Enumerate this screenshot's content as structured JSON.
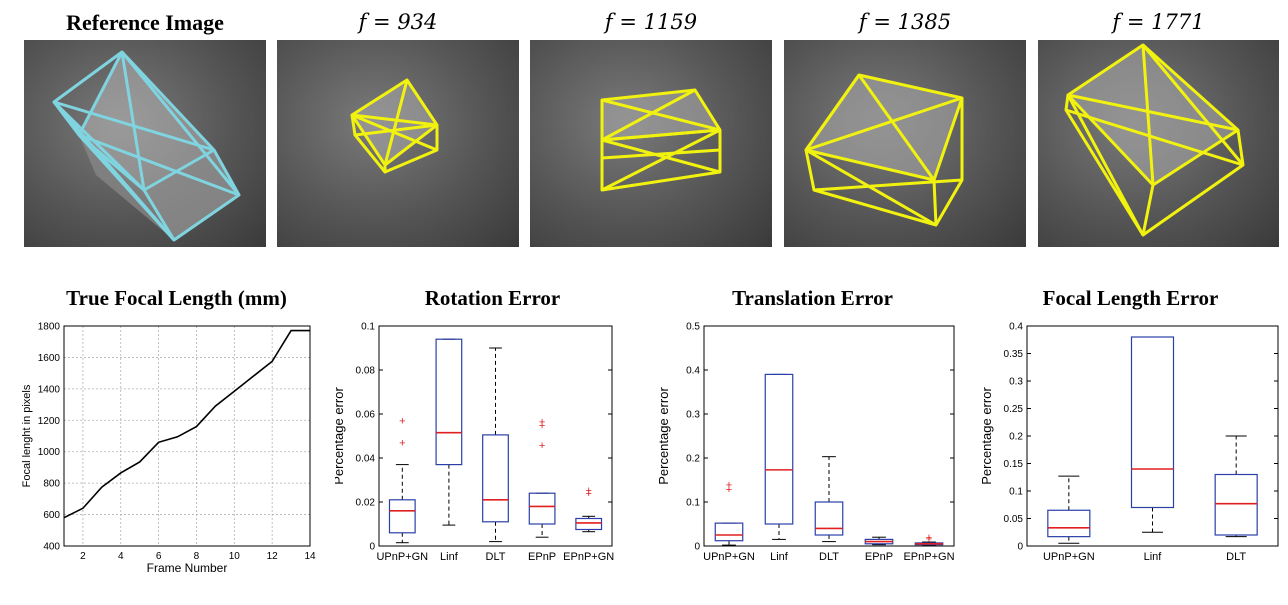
{
  "images": [
    {
      "title": "Reference Image",
      "style": "bold",
      "color": "#7fd4e0"
    },
    {
      "title": "f = 934",
      "style": "math",
      "color": "#f2f20f"
    },
    {
      "title": "f = 1159",
      "style": "math",
      "color": "#f2f20f"
    },
    {
      "title": "f = 1385",
      "style": "math",
      "color": "#f2f20f"
    },
    {
      "title": "f = 1771",
      "style": "math",
      "color": "#f2f20f"
    }
  ],
  "chart_data": [
    {
      "type": "line",
      "title": "True Focal Length (mm)",
      "xlabel": "Frame Number",
      "ylabel": "Focal lenght in pixels",
      "xlim": [
        1,
        14
      ],
      "ylim": [
        400,
        1800
      ],
      "xticks": [
        2,
        4,
        6,
        8,
        10,
        12,
        14
      ],
      "yticks": [
        400,
        600,
        800,
        1000,
        1200,
        1400,
        1600,
        1800
      ],
      "grid": true,
      "series": [
        {
          "x": [
            1,
            2,
            3,
            4,
            5,
            6,
            7,
            8,
            9,
            10,
            11,
            12,
            13,
            14
          ],
          "y": [
            580,
            640,
            775,
            865,
            935,
            1060,
            1095,
            1160,
            1290,
            1385,
            1480,
            1575,
            1771,
            1771
          ]
        }
      ]
    },
    {
      "type": "box",
      "title": "Rotation Error",
      "ylabel": "Percentage error",
      "ylim": [
        0,
        0.1
      ],
      "yticks": [
        "0",
        "0.02",
        "0.04",
        "0.06",
        "0.08",
        "0.1"
      ],
      "ytick_values": [
        0,
        0.02,
        0.04,
        0.06,
        0.08,
        0.1
      ],
      "categories": [
        "UPnP+GN",
        "Linf",
        "DLT",
        "EPnP",
        "EPnP+GN"
      ],
      "boxes": [
        {
          "whislo": 0.0015,
          "q1": 0.006,
          "med": 0.016,
          "q3": 0.021,
          "whishi": 0.037,
          "fliers": [
            0.047,
            0.057
          ]
        },
        {
          "whislo": 0.0095,
          "q1": 0.037,
          "med": 0.0515,
          "q3": 0.094,
          "whishi": 0.094,
          "fliers": []
        },
        {
          "whislo": 0.002,
          "q1": 0.011,
          "med": 0.021,
          "q3": 0.0505,
          "whishi": 0.09,
          "fliers": []
        },
        {
          "whislo": 0.004,
          "q1": 0.01,
          "med": 0.018,
          "q3": 0.024,
          "whishi": 0.024,
          "fliers": [
            0.046,
            0.055,
            0.0565
          ]
        },
        {
          "whislo": 0.0065,
          "q1": 0.0075,
          "med": 0.0105,
          "q3": 0.0125,
          "whishi": 0.0135,
          "fliers": [
            0.024,
            0.0255
          ]
        }
      ]
    },
    {
      "type": "box",
      "title": "Translation Error",
      "ylabel": "Percentage error",
      "ylim": [
        0,
        0.5
      ],
      "yticks": [
        "0",
        "0.1",
        "0.2",
        "0.3",
        "0.4",
        "0.5"
      ],
      "ytick_values": [
        0,
        0.1,
        0.2,
        0.3,
        0.4,
        0.5
      ],
      "categories": [
        "UPnP+GN",
        "Linf",
        "DLT",
        "EPnP",
        "EPnP+GN"
      ],
      "boxes": [
        {
          "whislo": 0.002,
          "q1": 0.012,
          "med": 0.025,
          "q3": 0.052,
          "whishi": 0.052,
          "fliers": [
            0.13,
            0.14
          ]
        },
        {
          "whislo": 0.015,
          "q1": 0.05,
          "med": 0.173,
          "q3": 0.39,
          "whishi": 0.39,
          "fliers": []
        },
        {
          "whislo": 0.01,
          "q1": 0.025,
          "med": 0.04,
          "q3": 0.1,
          "whishi": 0.203,
          "fliers": []
        },
        {
          "whislo": 0.003,
          "q1": 0.005,
          "med": 0.01,
          "q3": 0.015,
          "whishi": 0.02,
          "fliers": []
        },
        {
          "whislo": 0.002,
          "q1": 0.003,
          "med": 0.005,
          "q3": 0.007,
          "whishi": 0.009,
          "fliers": [
            0.017,
            0.02
          ]
        }
      ]
    },
    {
      "type": "box",
      "title": "Focal Length Error",
      "ylabel": "Percentage error",
      "ylim": [
        0,
        0.4
      ],
      "yticks": [
        "0",
        "0.05",
        "0.1",
        "0.15",
        "0.2",
        "0.25",
        "0.3",
        "0.35",
        "0.4"
      ],
      "ytick_values": [
        0,
        0.05,
        0.1,
        0.15,
        0.2,
        0.25,
        0.3,
        0.35,
        0.4
      ],
      "categories": [
        "UPnP+GN",
        "Linf",
        "DLT"
      ],
      "boxes": [
        {
          "whislo": 0.005,
          "q1": 0.017,
          "med": 0.033,
          "q3": 0.065,
          "whishi": 0.127,
          "fliers": []
        },
        {
          "whislo": 0.025,
          "q1": 0.07,
          "med": 0.14,
          "q3": 0.38,
          "whishi": 0.38,
          "fliers": []
        },
        {
          "whislo": 0.017,
          "q1": 0.02,
          "med": 0.077,
          "q3": 0.13,
          "whishi": 0.2,
          "fliers": []
        }
      ]
    }
  ],
  "colors": {
    "box": "#2b3fa8",
    "median": "#e02020",
    "flier": "#e02020",
    "line": "#000000",
    "grid": "#b0b0b0"
  }
}
